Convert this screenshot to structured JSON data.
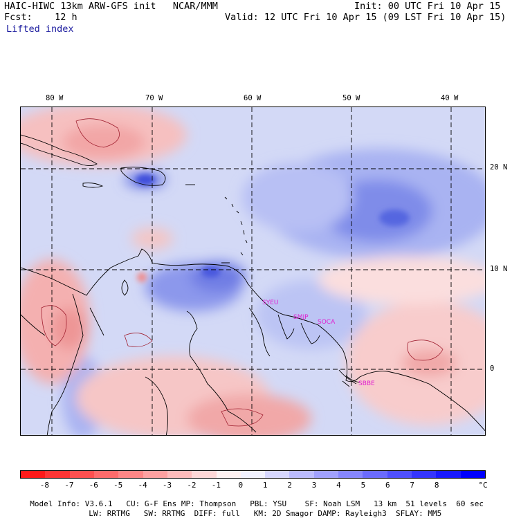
{
  "header": {
    "model": "HAIC-HIWC 13km ARW-GFS init   NCAR/MMM",
    "init": "Init: 00 UTC Fri 10 Apr 15",
    "fcst": "Fcst:    12 h",
    "valid": "Valid: 12 UTC Fri 10 Apr 15 (09 LST Fri 10 Apr 15)",
    "field": "Lifted index"
  },
  "map": {
    "lon_labels": [
      "80 W",
      "70 W",
      "60 W",
      "50 W",
      "40 W"
    ],
    "lat_labels": [
      "20 N",
      "10 N",
      "0"
    ],
    "stations": [
      "SYEU",
      "SMJP",
      "SOCA",
      "SBBE"
    ],
    "station_color": "#e020d0"
  },
  "colorbar": {
    "colors": [
      "#ff1a1a",
      "#ff3535",
      "#ff5050",
      "#ff6b6b",
      "#ff8686",
      "#ffa1a1",
      "#ffbcbc",
      "#ffd7d7",
      "#fff2f2",
      "#f2f2ff",
      "#d7d7ff",
      "#bcbcff",
      "#a1a1ff",
      "#8686ff",
      "#6b6bff",
      "#5050ff",
      "#3535ff",
      "#1a1aff",
      "#0000ff"
    ],
    "tick_labels": [
      "-8",
      "-7",
      "-6",
      "-5",
      "-4",
      "-3",
      "-2",
      "-1",
      "0",
      "1",
      "2",
      "3",
      "4",
      "5",
      "6",
      "7",
      "8",
      "°C"
    ]
  },
  "footer": {
    "line1": [
      "Model Info: V3.6.1",
      "CU: G-F Ens",
      "MP: Thompson",
      "PBL: YSU",
      "SF: Noah LSM",
      "13 km",
      "51 levels",
      "60 sec"
    ],
    "line2": [
      "LW: RRTMG",
      "SW: RRTMG",
      "DIFF: full",
      "KM: 2D Smagor",
      "DAMP: Rayleigh3",
      "SFLAY: MM5"
    ]
  }
}
